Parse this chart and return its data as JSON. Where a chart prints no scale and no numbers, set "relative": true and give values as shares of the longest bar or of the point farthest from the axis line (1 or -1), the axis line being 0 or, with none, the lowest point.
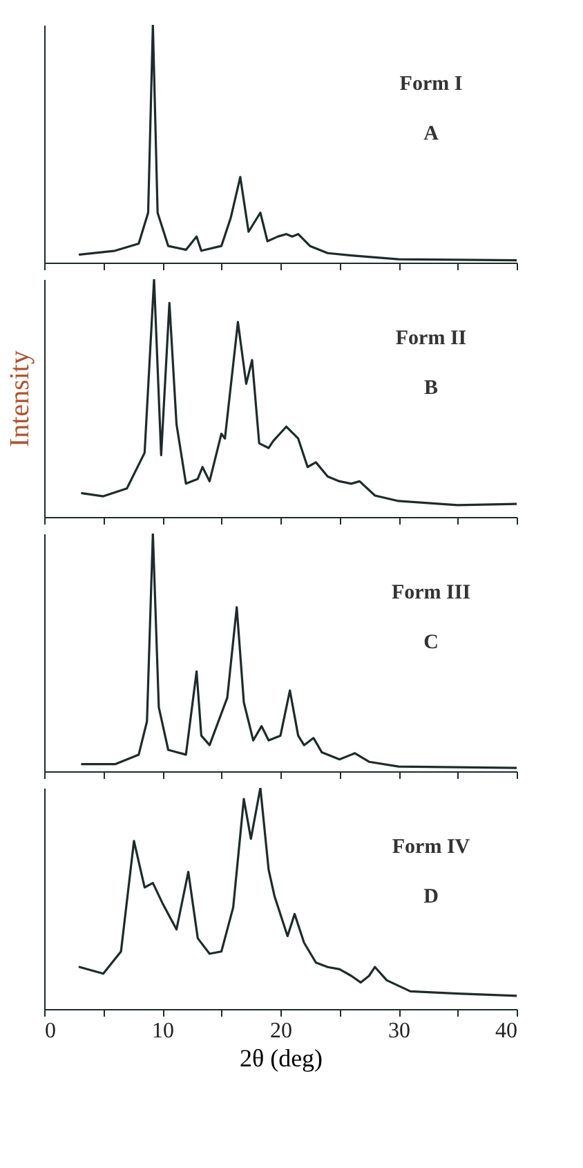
{
  "chart_data": [
    {
      "type": "line",
      "relative": true,
      "annotations": [
        "Form I",
        "A"
      ],
      "xlim": [
        0,
        40
      ],
      "xticks": [
        {
          "value": 0,
          "label": null
        },
        {
          "value": 5,
          "label": null
        },
        {
          "value": 10,
          "label": null
        },
        {
          "value": 15,
          "label": null
        },
        {
          "value": 20,
          "label": null
        },
        {
          "value": 25,
          "label": null
        },
        {
          "value": 30,
          "label": null
        },
        {
          "value": 35,
          "label": null
        },
        {
          "value": 40,
          "label": null
        }
      ],
      "tick_labels": false,
      "grid": false,
      "marker": "none",
      "line_style": "solid",
      "series": [
        {
          "color": "#1e2b2b",
          "x": [
            3,
            6,
            8,
            8.8,
            9.2,
            9.6,
            10.5,
            12,
            12.9,
            13.3,
            15,
            15.8,
            16.6,
            17.3,
            18.3,
            18.9,
            19.8,
            20.5,
            21,
            21.5,
            22.5,
            24,
            26,
            30,
            40
          ],
          "values": [
            0.034,
            0.05,
            0.08,
            0.21,
            1,
            0.21,
            0.07,
            0.054,
            0.11,
            0.05,
            0.07,
            0.19,
            0.36,
            0.13,
            0.21,
            0.09,
            0.11,
            0.12,
            0.11,
            0.12,
            0.07,
            0.04,
            0.03,
            0.014,
            0.01
          ]
        }
      ]
    },
    {
      "type": "line",
      "relative": true,
      "ylabel": "Intensity",
      "annotations": [
        "Form II",
        "B"
      ],
      "xlim": [
        0,
        40
      ],
      "xticks": [
        {
          "value": 0,
          "label": null
        },
        {
          "value": 5,
          "label": null
        },
        {
          "value": 10,
          "label": null
        },
        {
          "value": 15,
          "label": null
        },
        {
          "value": 20,
          "label": null
        },
        {
          "value": 25,
          "label": null
        },
        {
          "value": 30,
          "label": null
        },
        {
          "value": 35,
          "label": null
        },
        {
          "value": 40,
          "label": null
        }
      ],
      "tick_labels": false,
      "grid": false,
      "marker": "none",
      "line_style": "solid",
      "series": [
        {
          "color": "#1e2b2b",
          "x": [
            3.2,
            5,
            7,
            8.5,
            9.3,
            9.9,
            10.6,
            11.2,
            12,
            13,
            13.4,
            14,
            15,
            15.3,
            16.4,
            17.1,
            17.6,
            18.2,
            19,
            19.4,
            20.5,
            21.5,
            22.3,
            23,
            24,
            25,
            26,
            26.7,
            28,
            30,
            35,
            40
          ],
          "values": [
            0.1,
            0.087,
            0.12,
            0.27,
            1,
            0.26,
            0.9,
            0.39,
            0.14,
            0.16,
            0.21,
            0.15,
            0.35,
            0.33,
            0.82,
            0.56,
            0.66,
            0.31,
            0.29,
            0.32,
            0.38,
            0.33,
            0.21,
            0.23,
            0.17,
            0.15,
            0.14,
            0.15,
            0.09,
            0.067,
            0.05,
            0.055
          ]
        }
      ]
    },
    {
      "type": "line",
      "relative": true,
      "annotations": [
        "Form III",
        "C"
      ],
      "xlim": [
        0,
        40
      ],
      "xticks": [
        {
          "value": 0,
          "label": null
        },
        {
          "value": 5,
          "label": null
        },
        {
          "value": 10,
          "label": null
        },
        {
          "value": 15,
          "label": null
        },
        {
          "value": 20,
          "label": null
        },
        {
          "value": 25,
          "label": null
        },
        {
          "value": 30,
          "label": null
        },
        {
          "value": 35,
          "label": null
        },
        {
          "value": 40,
          "label": null
        }
      ],
      "tick_labels": false,
      "grid": false,
      "marker": "none",
      "line_style": "solid",
      "series": [
        {
          "color": "#1e2b2b",
          "x": [
            3.2,
            6,
            8,
            8.7,
            9.2,
            9.7,
            10.5,
            12,
            12.9,
            13.3,
            14,
            15.5,
            16.3,
            16.9,
            17.7,
            18.4,
            19,
            20,
            20.8,
            21.5,
            22,
            22.8,
            23.5,
            25,
            26.3,
            27.5,
            30,
            40
          ],
          "values": [
            0.03,
            0.03,
            0.07,
            0.21,
            1,
            0.27,
            0.09,
            0.07,
            0.42,
            0.15,
            0.11,
            0.31,
            0.69,
            0.29,
            0.13,
            0.19,
            0.13,
            0.15,
            0.34,
            0.15,
            0.11,
            0.14,
            0.08,
            0.05,
            0.076,
            0.04,
            0.02,
            0.014
          ]
        }
      ]
    },
    {
      "type": "line",
      "relative": true,
      "xlabel": "2θ (deg)",
      "annotations": [
        "Form IV",
        "D"
      ],
      "xlim": [
        0,
        40
      ],
      "xticks": [
        0,
        {
          "value": 5,
          "label": null
        },
        10,
        {
          "value": 15,
          "label": null
        },
        20,
        {
          "value": 25,
          "label": null
        },
        30,
        {
          "value": 35,
          "label": null
        },
        40
      ],
      "tick_labels": "x",
      "grid": false,
      "marker": "none",
      "line_style": "solid",
      "series": [
        {
          "color": "#1e2b2b",
          "x": [
            3,
            5,
            6.5,
            7.6,
            8.5,
            9.2,
            10,
            11.2,
            12.2,
            13,
            14,
            15,
            16,
            16.9,
            17.5,
            18.3,
            19,
            19.5,
            20.6,
            21.2,
            22,
            23,
            24,
            25,
            26,
            26.8,
            27.5,
            28,
            29,
            31,
            35,
            40
          ],
          "values": [
            0.19,
            0.16,
            0.26,
            0.76,
            0.55,
            0.57,
            0.48,
            0.36,
            0.62,
            0.32,
            0.25,
            0.26,
            0.46,
            0.95,
            0.77,
            1,
            0.63,
            0.51,
            0.33,
            0.43,
            0.3,
            0.21,
            0.19,
            0.18,
            0.15,
            0.12,
            0.15,
            0.19,
            0.13,
            0.08,
            0.07,
            0.06
          ]
        }
      ]
    }
  ]
}
